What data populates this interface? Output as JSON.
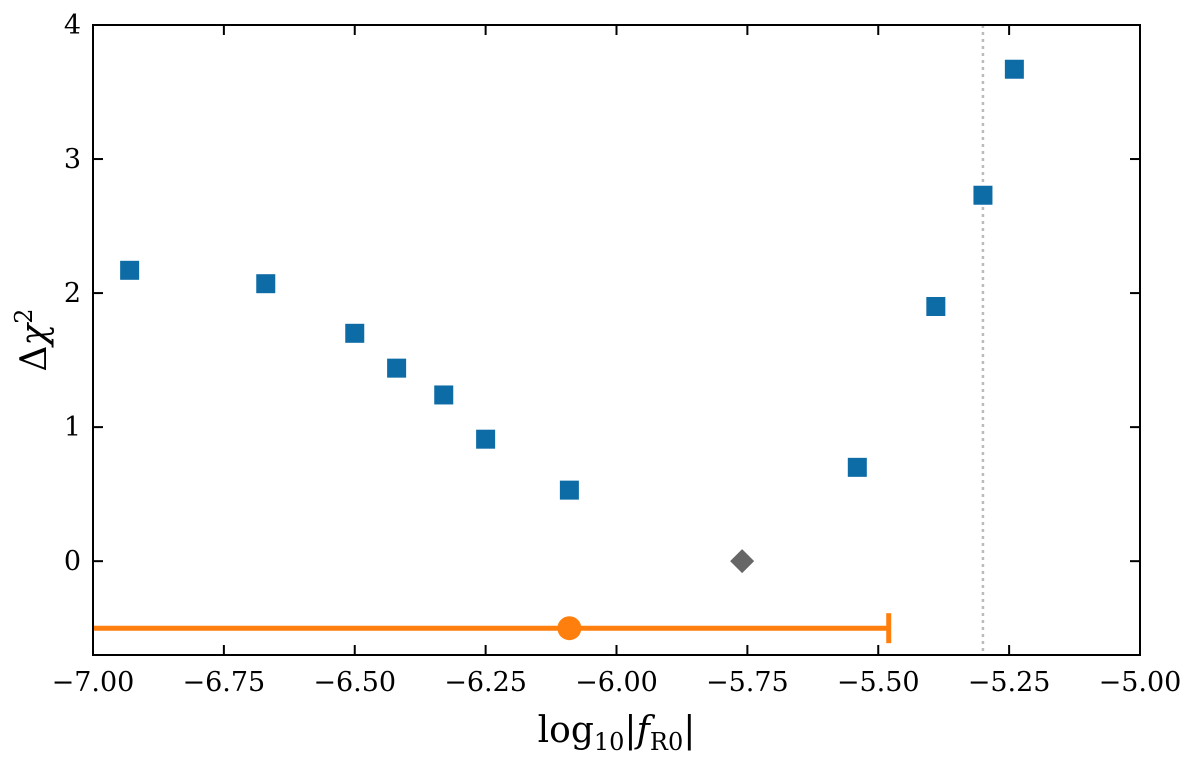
{
  "chart_data": {
    "type": "scatter",
    "xlabel": "log10|fR0|",
    "ylabel": "Δχ2",
    "xlim": [
      -7.0,
      -5.0
    ],
    "ylim": [
      -0.7,
      4.0
    ],
    "xticks": [
      -7.0,
      -6.75,
      -6.5,
      -6.25,
      -6.0,
      -5.75,
      -5.5,
      -5.25,
      -5.0
    ],
    "xtick_labels": [
      "−7.00",
      "−6.75",
      "−6.50",
      "−6.25",
      "−6.00",
      "−5.75",
      "−5.50",
      "−5.25",
      "−5.00"
    ],
    "yticks": [
      0,
      1,
      2,
      3,
      4
    ],
    "ytick_labels": [
      "0",
      "1",
      "2",
      "3",
      "4"
    ],
    "grid": false,
    "series": [
      {
        "marker": "square",
        "color": "#0d6ba6",
        "x": [
          -6.93,
          -6.67,
          -6.5,
          -6.42,
          -6.33,
          -6.25,
          -6.09,
          -5.54,
          -5.39,
          -5.3,
          -5.24
        ],
        "y": [
          2.17,
          2.07,
          1.7,
          1.44,
          1.24,
          0.91,
          0.53,
          0.7,
          1.9,
          2.73,
          3.67
        ]
      },
      {
        "marker": "diamond",
        "color": "#666666",
        "x": [
          -5.76
        ],
        "y": [
          0.0
        ]
      },
      {
        "marker": "circle",
        "color": "#ff7f0e",
        "x": [
          -6.09
        ],
        "y": [
          -0.5
        ],
        "xerr_low": [
          -7.0
        ],
        "xerr_high": [
          -5.48
        ],
        "caps": "right"
      }
    ],
    "vlines": [
      {
        "x": -5.3,
        "style": "dotted",
        "color": "#bbbbbb"
      }
    ]
  }
}
